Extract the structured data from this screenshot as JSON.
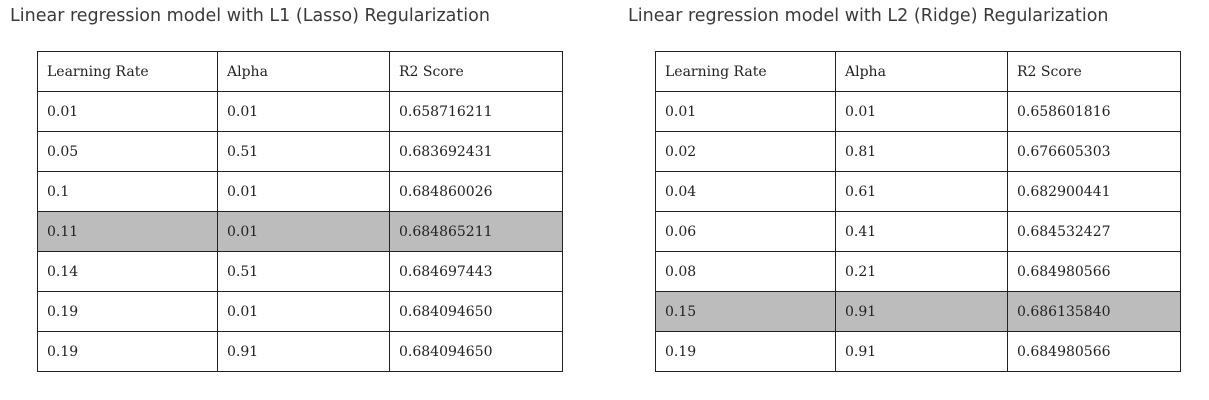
{
  "tables": [
    {
      "title": "Linear regression model with L1 (Lasso) Regularization",
      "headers": [
        "Learning Rate",
        "Alpha",
        "R2 Score"
      ],
      "rows": [
        [
          "0.01",
          "0.01",
          "0.658716211"
        ],
        [
          "0.05",
          "0.51",
          "0.683692431"
        ],
        [
          "0.1",
          "0.01",
          "0.684860026"
        ],
        [
          "0.11",
          "0.01",
          "0.684865211"
        ],
        [
          "0.14",
          "0.51",
          "0.684697443"
        ],
        [
          "0.19",
          "0.01",
          "0.684094650"
        ],
        [
          "0.19",
          "0.91",
          "0.684094650"
        ]
      ],
      "highlighted_row": 3,
      "highlight_color": "#bcbcbc"
    },
    {
      "title": "Linear regression model with L2 (Ridge) Regularization",
      "headers": [
        "Learning Rate",
        "Alpha",
        "R2 Score"
      ],
      "rows": [
        [
          "0.01",
          "0.01",
          "0.658601816"
        ],
        [
          "0.02",
          "0.81",
          "0.676605303"
        ],
        [
          "0.04",
          "0.61",
          "0.682900441"
        ],
        [
          "0.06",
          "0.41",
          "0.684532427"
        ],
        [
          "0.08",
          "0.21",
          "0.684980566"
        ],
        [
          "0.15",
          "0.91",
          "0.686135840"
        ],
        [
          "0.19",
          "0.91",
          "0.684980566"
        ]
      ],
      "highlighted_row": 5,
      "highlight_color": "#bcbcbc"
    }
  ]
}
